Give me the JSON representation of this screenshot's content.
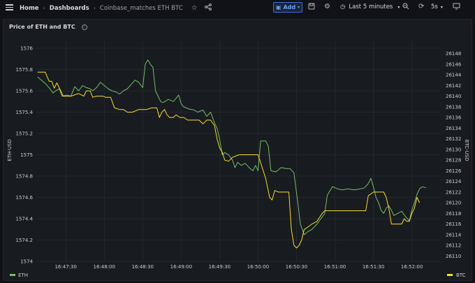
{
  "nav": {
    "home": "Home",
    "dashboards": "Dashboards",
    "current": "Coinbase_matches ETH BTC"
  },
  "toolbar": {
    "add_label": "Add",
    "time_range": "Last 5 minutes",
    "refresh_interval": "5s"
  },
  "icons": {
    "menu": "hamburger-menu-icon",
    "star": "star-icon",
    "share": "share-icon",
    "save": "save-icon",
    "settings": "gear-icon",
    "clock": "clock-icon",
    "zoom_out": "zoom-out-icon",
    "refresh": "refresh-icon",
    "tv": "tv-mode-icon"
  },
  "panel": {
    "title": "Price of ETH and BTC"
  },
  "colors": {
    "eth": "#73bf69",
    "btc": "#fade2a",
    "accent": "#3d71d9"
  },
  "chart_data": {
    "type": "line",
    "title": "Price of ETH and BTC",
    "xlabel": "",
    "ylabel": "ETH-USD",
    "y2label": "BTC-USD",
    "x_ticks": [
      "16:47:30",
      "16:48:00",
      "16:48:30",
      "16:49:00",
      "16:49:30",
      "16:50:00",
      "16:50:30",
      "16:51:00",
      "16:51:30",
      "16:52:00"
    ],
    "x_tick_seconds": [
      0,
      30,
      60,
      90,
      120,
      150,
      180,
      210,
      240,
      270
    ],
    "xlim": [
      -23,
      292
    ],
    "y_ticks": [
      "1576",
      "1575.8",
      "1575.6",
      "1575.4",
      "1575.2",
      "1575",
      "1574.8",
      "1574.6",
      "1574.4",
      "1574.2",
      "1574"
    ],
    "ylim": [
      1574,
      1576
    ],
    "y2_ticks": [
      "26148",
      "26146",
      "26144",
      "26142",
      "26140",
      "26138",
      "26136",
      "26134",
      "26132",
      "26130",
      "26128",
      "26126",
      "26124",
      "26122",
      "26120",
      "26118",
      "26116",
      "26114",
      "26112",
      "26110"
    ],
    "y2lim": [
      26109,
      26149
    ],
    "grid": true,
    "legend_position": "bottom",
    "series": [
      {
        "name": "ETH",
        "axis": "left",
        "color": "#73bf69",
        "points": [
          [
            -22,
            1575.73
          ],
          [
            -19,
            1575.7
          ],
          [
            -16,
            1575.67
          ],
          [
            -13,
            1575.63
          ],
          [
            -10,
            1575.58
          ],
          [
            -8,
            1575.6
          ],
          [
            -5,
            1575.62
          ],
          [
            -3,
            1575.55
          ],
          [
            1,
            1575.56
          ],
          [
            4,
            1575.55
          ],
          [
            7,
            1575.64
          ],
          [
            10,
            1575.6
          ],
          [
            13,
            1575.65
          ],
          [
            16,
            1575.63
          ],
          [
            19,
            1575.62
          ],
          [
            21,
            1575.6
          ],
          [
            24,
            1575.63
          ],
          [
            27,
            1575.68
          ],
          [
            30,
            1575.65
          ],
          [
            33,
            1575.62
          ],
          [
            36,
            1575.6
          ],
          [
            39,
            1575.59
          ],
          [
            42,
            1575.57
          ],
          [
            45,
            1575.6
          ],
          [
            48,
            1575.62
          ],
          [
            51,
            1575.66
          ],
          [
            54,
            1575.7
          ],
          [
            57,
            1575.68
          ],
          [
            60,
            1575.63
          ],
          [
            62,
            1575.85
          ],
          [
            64,
            1575.89
          ],
          [
            66,
            1575.85
          ],
          [
            68,
            1575.82
          ],
          [
            70,
            1575.6
          ],
          [
            72,
            1575.55
          ],
          [
            74,
            1575.5
          ],
          [
            76,
            1575.49
          ],
          [
            80,
            1575.52
          ],
          [
            84,
            1575.5
          ],
          [
            88,
            1575.56
          ],
          [
            90,
            1575.48
          ],
          [
            92,
            1575.45
          ],
          [
            96,
            1575.43
          ],
          [
            100,
            1575.42
          ],
          [
            103,
            1575.4
          ],
          [
            107,
            1575.42
          ],
          [
            110,
            1575.36
          ],
          [
            113,
            1575.4
          ],
          [
            116,
            1575.3
          ],
          [
            118,
            1575.25
          ],
          [
            120,
            1575.15
          ],
          [
            122,
            1575
          ],
          [
            124,
            1575.02
          ],
          [
            127,
            1575
          ],
          [
            130,
            1574.95
          ],
          [
            132,
            1574.88
          ],
          [
            134,
            1574.93
          ],
          [
            137,
            1574.9
          ],
          [
            140,
            1574.92
          ],
          [
            143,
            1574.88
          ],
          [
            146,
            1574.85
          ],
          [
            148,
            1574.9
          ],
          [
            150,
            1574.85
          ],
          [
            152,
            1575.13
          ],
          [
            156,
            1575.13
          ],
          [
            158,
            1575.08
          ],
          [
            160,
            1574.85
          ],
          [
            164,
            1574.84
          ],
          [
            168,
            1574.88
          ],
          [
            172,
            1574.87
          ],
          [
            175,
            1574.87
          ],
          [
            178,
            1574.83
          ],
          [
            181,
            1574.55
          ],
          [
            183,
            1574.35
          ],
          [
            186,
            1574.25
          ],
          [
            189,
            1574.28
          ],
          [
            192,
            1574.3
          ],
          [
            196,
            1574.35
          ],
          [
            199,
            1574.4
          ],
          [
            202,
            1574.45
          ],
          [
            204,
            1574.62
          ],
          [
            206,
            1574.66
          ],
          [
            208,
            1574.7
          ],
          [
            212,
            1574.68
          ],
          [
            216,
            1574.67
          ],
          [
            220,
            1574.68
          ],
          [
            225,
            1574.67
          ],
          [
            230,
            1574.68
          ],
          [
            233,
            1574.69
          ],
          [
            236,
            1574.73
          ],
          [
            238,
            1574.78
          ],
          [
            240,
            1574.7
          ],
          [
            242,
            1574.6
          ],
          [
            244,
            1574.55
          ],
          [
            246,
            1574.48
          ],
          [
            248,
            1574.45
          ],
          [
            250,
            1574.5
          ],
          [
            252,
            1574.52
          ],
          [
            254,
            1574.48
          ],
          [
            256,
            1574.43
          ],
          [
            259,
            1574.45
          ],
          [
            262,
            1574.47
          ],
          [
            265,
            1574.42
          ],
          [
            268,
            1574.38
          ],
          [
            270,
            1574.48
          ],
          [
            272,
            1574.55
          ],
          [
            274,
            1574.63
          ],
          [
            276,
            1574.68
          ],
          [
            278,
            1574.7
          ],
          [
            281,
            1574.69
          ]
        ]
      },
      {
        "name": "BTC",
        "axis": "right",
        "color": "#fade2a",
        "points": [
          [
            -22,
            26144.5
          ],
          [
            -16,
            26144.5
          ],
          [
            -13,
            26142.8
          ],
          [
            -11,
            26142.8
          ],
          [
            -9,
            26141.5
          ],
          [
            -7,
            26142.5
          ],
          [
            -4,
            26141
          ],
          [
            -2,
            26140
          ],
          [
            4,
            26140
          ],
          [
            10,
            26140.5
          ],
          [
            14,
            26140
          ],
          [
            16,
            26141
          ],
          [
            19,
            26141
          ],
          [
            21,
            26139.8
          ],
          [
            24,
            26140
          ],
          [
            29,
            26140
          ],
          [
            31,
            26139.8
          ],
          [
            35,
            26139.8
          ],
          [
            38,
            26137.8
          ],
          [
            42,
            26137.5
          ],
          [
            45,
            26137.5
          ],
          [
            48,
            26137
          ],
          [
            52,
            26137
          ],
          [
            57,
            26137.5
          ],
          [
            63,
            26137.5
          ],
          [
            67,
            26137.8
          ],
          [
            71,
            26137.8
          ],
          [
            73,
            26136
          ],
          [
            75,
            26137
          ],
          [
            77,
            26137.5
          ],
          [
            79,
            26136.5
          ],
          [
            81,
            26136
          ],
          [
            84,
            26136
          ],
          [
            86,
            26136.5
          ],
          [
            89,
            26136
          ],
          [
            92,
            26136
          ],
          [
            95,
            26135.5
          ],
          [
            100,
            26135.5
          ],
          [
            104,
            26135.5
          ],
          [
            107,
            26134.8
          ],
          [
            110,
            26135.5
          ],
          [
            113,
            26135.5
          ],
          [
            116,
            26134.5
          ],
          [
            118,
            26132
          ],
          [
            120,
            26130.3
          ],
          [
            122,
            26129.5
          ],
          [
            124,
            26128
          ],
          [
            127,
            26127.8
          ],
          [
            130,
            26128.5
          ],
          [
            135,
            26129
          ],
          [
            140,
            26129
          ],
          [
            146,
            26129
          ],
          [
            150,
            26129
          ],
          [
            152,
            26127.5
          ],
          [
            156,
            26124.5
          ],
          [
            159,
            26121
          ],
          [
            161,
            26120.5
          ],
          [
            163,
            26122.3
          ],
          [
            166,
            26122
          ],
          [
            170,
            26122
          ],
          [
            174,
            26122
          ],
          [
            176,
            26115
          ],
          [
            178,
            26112
          ],
          [
            180,
            26111.5
          ],
          [
            182,
            26112
          ],
          [
            184,
            26113
          ],
          [
            186,
            26115
          ],
          [
            188,
            26115.3
          ],
          [
            192,
            26116
          ],
          [
            196,
            26116.5
          ],
          [
            200,
            26118
          ],
          [
            202,
            26118.5
          ],
          [
            207,
            26118.5
          ],
          [
            210,
            26118.5
          ],
          [
            220,
            26118.5
          ],
          [
            230,
            26118.5
          ],
          [
            234,
            26118.5
          ],
          [
            236,
            26121.3
          ],
          [
            240,
            26122
          ],
          [
            244,
            26122
          ],
          [
            248,
            26122
          ],
          [
            250,
            26121
          ],
          [
            252,
            26119
          ],
          [
            254,
            26116
          ],
          [
            258,
            26116
          ],
          [
            262,
            26116
          ],
          [
            264,
            26117
          ],
          [
            266,
            26116.5
          ],
          [
            268,
            26116.5
          ],
          [
            270,
            26118
          ],
          [
            272,
            26119
          ],
          [
            274,
            26121
          ],
          [
            276,
            26120
          ]
        ]
      }
    ]
  }
}
